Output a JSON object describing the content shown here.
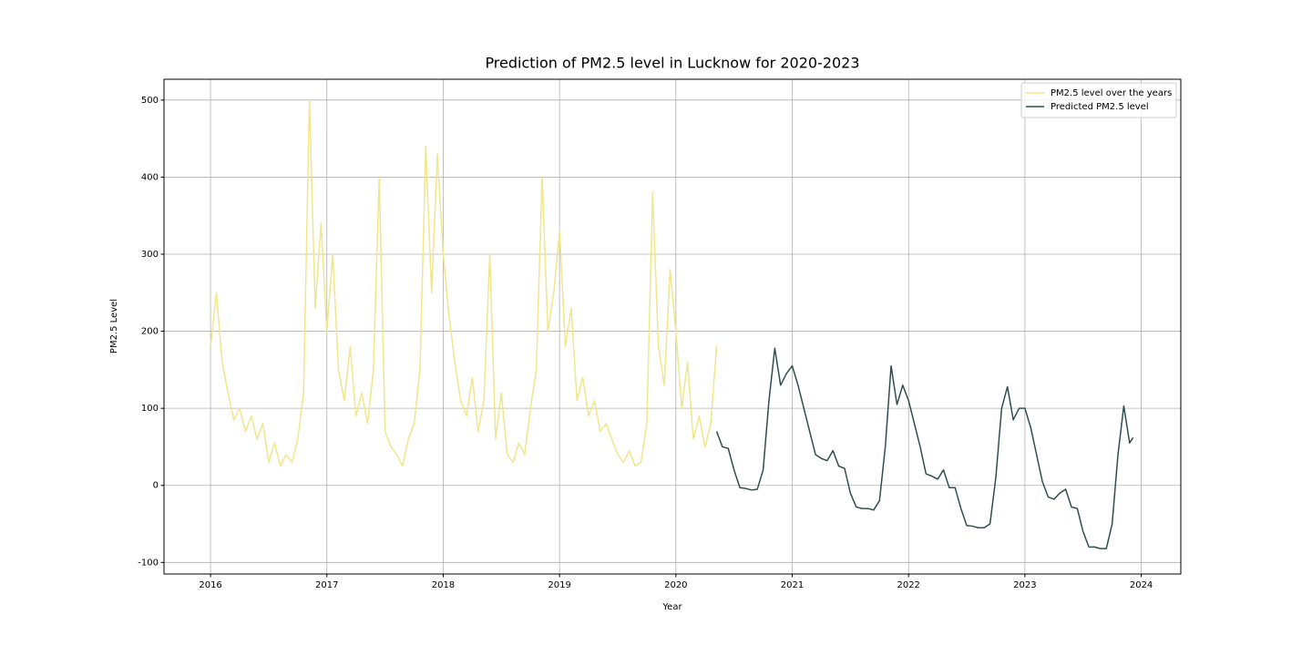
{
  "chart_data": {
    "type": "line",
    "title": "Prediction of PM2.5 level in Lucknow for 2020-2023",
    "x_label": "Year",
    "y_label": "PM2.5 Level",
    "xlim": [
      2015.6,
      2024.34
    ],
    "ylim": [
      -115,
      527
    ],
    "xticks": [
      2016,
      2017,
      2018,
      2019,
      2020,
      2021,
      2022,
      2023,
      2024
    ],
    "yticks": [
      -100,
      0,
      100,
      200,
      300,
      400,
      500
    ],
    "grid": true,
    "legend": "upper right",
    "series": [
      {
        "name": "PM2.5 level over the years",
        "color": "#f0e68c",
        "x": [
          2016.0,
          2016.05,
          2016.1,
          2016.15,
          2016.2,
          2016.25,
          2016.3,
          2016.35,
          2016.4,
          2016.45,
          2016.5,
          2016.55,
          2016.6,
          2016.65,
          2016.7,
          2016.75,
          2016.8,
          2016.85,
          2016.9,
          2016.95,
          2017.0,
          2017.05,
          2017.1,
          2017.15,
          2017.2,
          2017.25,
          2017.3,
          2017.35,
          2017.4,
          2017.45,
          2017.5,
          2017.55,
          2017.6,
          2017.65,
          2017.7,
          2017.75,
          2017.8,
          2017.85,
          2017.9,
          2017.95,
          2018.0,
          2018.05,
          2018.1,
          2018.15,
          2018.2,
          2018.25,
          2018.3,
          2018.35,
          2018.4,
          2018.45,
          2018.5,
          2018.55,
          2018.6,
          2018.65,
          2018.7,
          2018.75,
          2018.8,
          2018.85,
          2018.9,
          2018.95,
          2019.0,
          2019.05,
          2019.1,
          2019.15,
          2019.2,
          2019.25,
          2019.3,
          2019.35,
          2019.4,
          2019.45,
          2019.5,
          2019.55,
          2019.6,
          2019.65,
          2019.7,
          2019.75,
          2019.8,
          2019.85,
          2019.9,
          2019.95,
          2020.0,
          2020.05,
          2020.1,
          2020.15,
          2020.2,
          2020.25,
          2020.3,
          2020.35
        ],
        "values": [
          180,
          250,
          160,
          120,
          85,
          100,
          70,
          90,
          60,
          80,
          30,
          55,
          25,
          40,
          30,
          60,
          120,
          500,
          230,
          340,
          200,
          300,
          150,
          110,
          180,
          90,
          120,
          80,
          150,
          400,
          70,
          50,
          40,
          25,
          60,
          80,
          150,
          440,
          250,
          430,
          300,
          220,
          160,
          110,
          90,
          140,
          70,
          110,
          300,
          60,
          120,
          40,
          30,
          55,
          40,
          100,
          150,
          400,
          200,
          250,
          330,
          180,
          230,
          110,
          140,
          90,
          110,
          70,
          80,
          60,
          40,
          30,
          45,
          25,
          30,
          80,
          380,
          180,
          130,
          280,
          200,
          100,
          160,
          60,
          90,
          50,
          80,
          180
        ]
      },
      {
        "name": "Predicted PM2.5 level",
        "color": "#2f4f4f",
        "x": [
          2020.35,
          2020.4,
          2020.45,
          2020.5,
          2020.55,
          2020.6,
          2020.65,
          2020.7,
          2020.75,
          2020.8,
          2020.85,
          2020.9,
          2020.95,
          2021.0,
          2021.05,
          2021.1,
          2021.15,
          2021.2,
          2021.25,
          2021.3,
          2021.35,
          2021.4,
          2021.45,
          2021.5,
          2021.55,
          2021.6,
          2021.65,
          2021.7,
          2021.75,
          2021.8,
          2021.85,
          2021.9,
          2021.95,
          2022.0,
          2022.05,
          2022.1,
          2022.15,
          2022.2,
          2022.25,
          2022.3,
          2022.35,
          2022.4,
          2022.45,
          2022.5,
          2022.55,
          2022.6,
          2022.65,
          2022.7,
          2022.75,
          2022.8,
          2022.85,
          2022.9,
          2022.95,
          2023.0,
          2023.05,
          2023.1,
          2023.15,
          2023.2,
          2023.25,
          2023.3,
          2023.35,
          2023.4,
          2023.45,
          2023.5,
          2023.55,
          2023.6,
          2023.65,
          2023.7,
          2023.75,
          2023.8,
          2023.85,
          2023.9,
          2023.93
        ],
        "values": [
          70,
          50,
          48,
          20,
          -3,
          -4,
          -6,
          -5,
          20,
          110,
          178,
          130,
          145,
          155,
          130,
          100,
          70,
          40,
          35,
          32,
          45,
          25,
          22,
          -10,
          -28,
          -30,
          -30,
          -32,
          -20,
          50,
          155,
          105,
          130,
          110,
          80,
          50,
          15,
          12,
          8,
          20,
          -3,
          -3,
          -30,
          -52,
          -53,
          -55,
          -55,
          -50,
          10,
          100,
          128,
          85,
          100,
          100,
          75,
          40,
          5,
          -15,
          -18,
          -10,
          -5,
          -28,
          -30,
          -60,
          -80,
          -80,
          -82,
          -82,
          -50,
          40,
          103,
          55,
          62
        ]
      }
    ]
  }
}
